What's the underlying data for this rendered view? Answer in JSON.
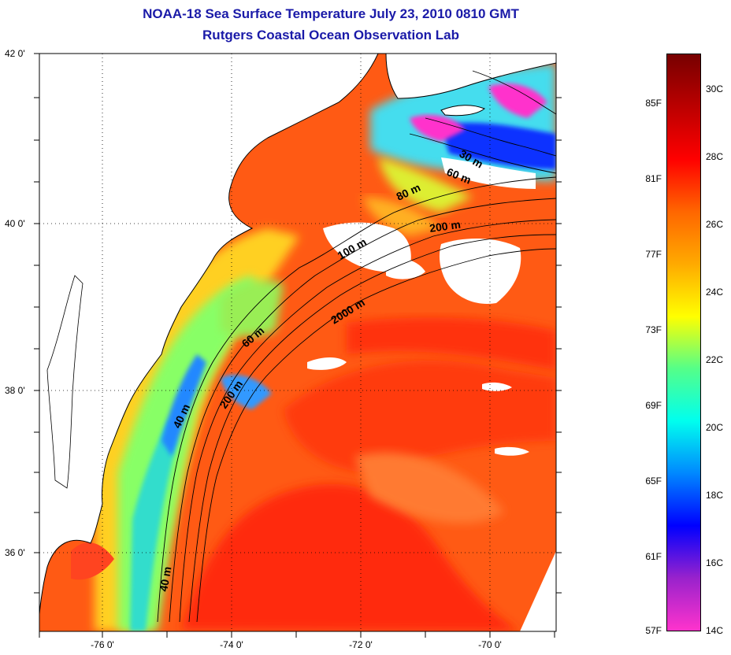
{
  "title_line1": "NOAA-18 Sea Surface Temperature July 23, 2010 0810 GMT",
  "title_line2": "Rutgers Coastal Ocean Observation Lab",
  "lat_ticks": [
    "42 0'",
    "40 0'",
    "38 0'",
    "36 0'"
  ],
  "lon_ticks": [
    "-76 0'",
    "-74 0'",
    "-72 0'",
    "-70 0'"
  ],
  "isobaths": [
    "30 m",
    "60 m",
    "80 m",
    "200 m",
    "100 m",
    "2000 m",
    "60 m",
    "200 m",
    "40 m",
    "40 m"
  ],
  "colorbar": {
    "fahrenheit": [
      "85F",
      "81F",
      "77F",
      "73F",
      "69F",
      "65F",
      "61F",
      "57F"
    ],
    "celsius": [
      "30C",
      "28C",
      "26C",
      "24C",
      "22C",
      "20C",
      "18C",
      "16C",
      "14C"
    ],
    "colors": [
      "#ff33cc",
      "#9922cc",
      "#0000ff",
      "#0088ff",
      "#00ffee",
      "#55ff88",
      "#ffff00",
      "#ffaa00",
      "#ff6600",
      "#ff0000",
      "#bb0000",
      "#770000"
    ]
  },
  "colors": {
    "title": "#1a1aa8",
    "warm_ocean": "#ff5a14",
    "hot_ocean": "#ff2a0a",
    "cool_shelf": "#ffd020",
    "cold_water": "#22ddee",
    "very_cold": "#0044ff",
    "coldest": "#ff33cc",
    "land": "#ffffff"
  }
}
